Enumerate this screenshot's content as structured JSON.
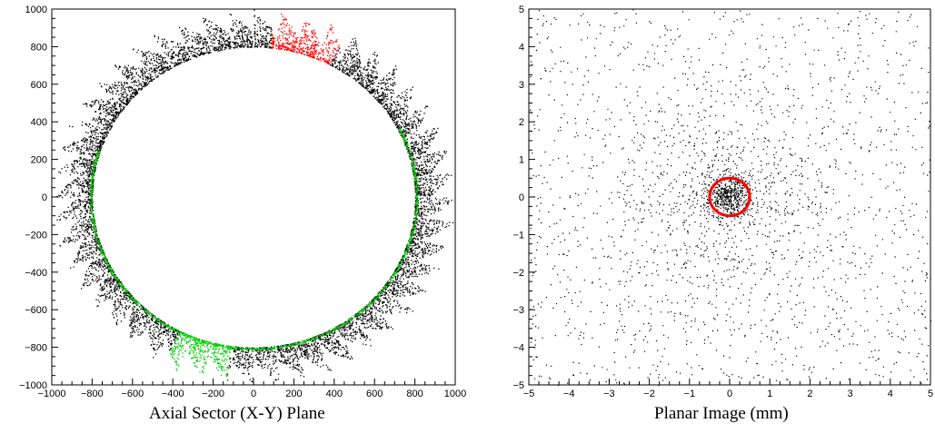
{
  "chart_data": [
    {
      "type": "scatter",
      "title": "Axial Sector (X-Y) Plane",
      "xlim": [
        -1000,
        1000
      ],
      "ylim": [
        -1000,
        1000
      ],
      "xticks": [
        -1000,
        -800,
        -600,
        -400,
        -200,
        0,
        200,
        400,
        600,
        800,
        1000
      ],
      "yticks": [
        -1000,
        -800,
        -600,
        -400,
        -200,
        0,
        200,
        400,
        600,
        800,
        1000
      ],
      "ring_inner_radius": 800,
      "ring_outer_radius_min": 860,
      "ring_outer_radius_max": 1000,
      "ring_sector_count": 48,
      "highlight_sectors": [
        {
          "color": "#ff0000",
          "angle_from_deg": 62,
          "angle_to_deg": 84
        },
        {
          "color": "#00cc00",
          "angle_from_deg": 243,
          "angle_to_deg": 262
        }
      ],
      "colors": {
        "points": "#000000",
        "inner_edge": "#00cc00"
      }
    },
    {
      "type": "scatter",
      "title": "Planar Image (mm)",
      "xlim": [
        -5,
        5
      ],
      "ylim": [
        -5,
        5
      ],
      "xticks": [
        -5,
        -4,
        -3,
        -2,
        -1,
        0,
        1,
        2,
        3,
        4,
        5
      ],
      "yticks": [
        -5,
        -4,
        -3,
        -2,
        -1,
        0,
        1,
        2,
        3,
        4,
        5
      ],
      "circle": {
        "center": [
          0,
          0
        ],
        "radius": 0.5,
        "color": "#ff0000"
      },
      "colors": {
        "points": "#000000"
      }
    }
  ]
}
